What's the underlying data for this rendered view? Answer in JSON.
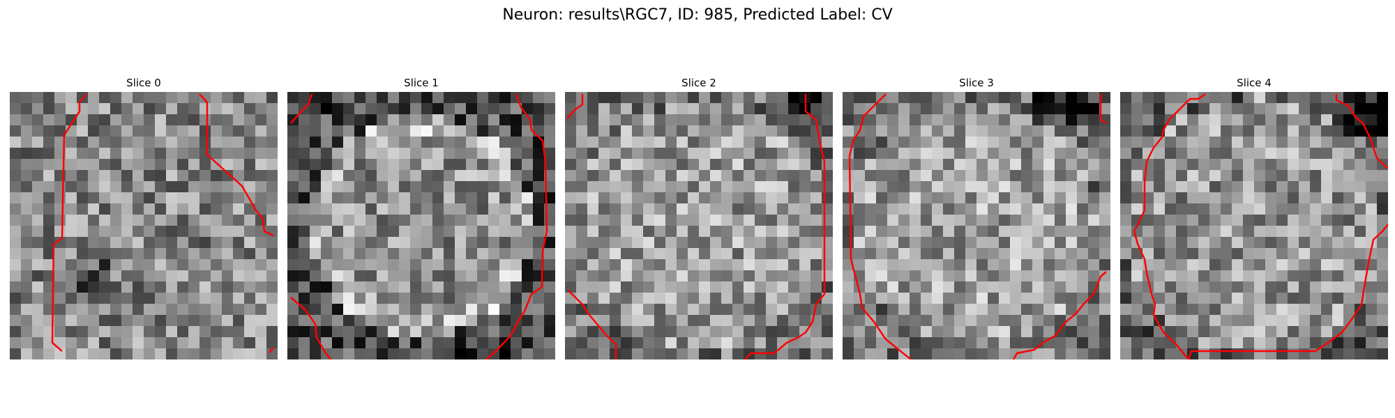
{
  "figure": {
    "title": "Neuron: results\\RGC7, ID: 985, Predicted Label: CV"
  },
  "colors": {
    "contour": "#ff0000",
    "background": "#ffffff"
  },
  "panels": [
    {
      "title": "Slice 0"
    },
    {
      "title": "Slice 1"
    },
    {
      "title": "Slice 2"
    },
    {
      "title": "Slice 3"
    },
    {
      "title": "Slice 4"
    }
  ]
}
